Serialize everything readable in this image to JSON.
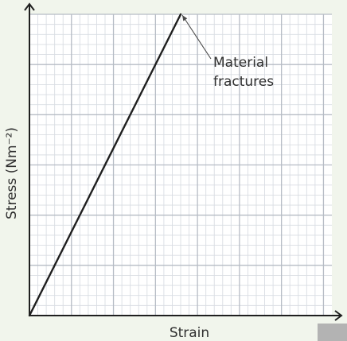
{
  "chart_data": {
    "type": "line",
    "title": "",
    "xlabel": "Strain",
    "ylabel": "Stress (Nm⁻²)",
    "x_ticks_labeled": false,
    "y_ticks_labeled": false,
    "grid": true,
    "xlim": [
      0,
      36
    ],
    "ylim": [
      0,
      30
    ],
    "series": [
      {
        "points": [
          [
            0,
            0
          ],
          [
            18,
            30
          ]
        ],
        "color": "#1f1f1f"
      }
    ],
    "annotations": [
      {
        "text_lines": [
          "Material",
          "fractures"
        ],
        "point": [
          18,
          30
        ]
      }
    ]
  },
  "colors": {
    "background": "#f1f5ec",
    "plot_background": "#ffffff",
    "minor_grid": "#d9dde3",
    "major_grid": "#b6bcc5",
    "axis": "#1f1f1f"
  }
}
